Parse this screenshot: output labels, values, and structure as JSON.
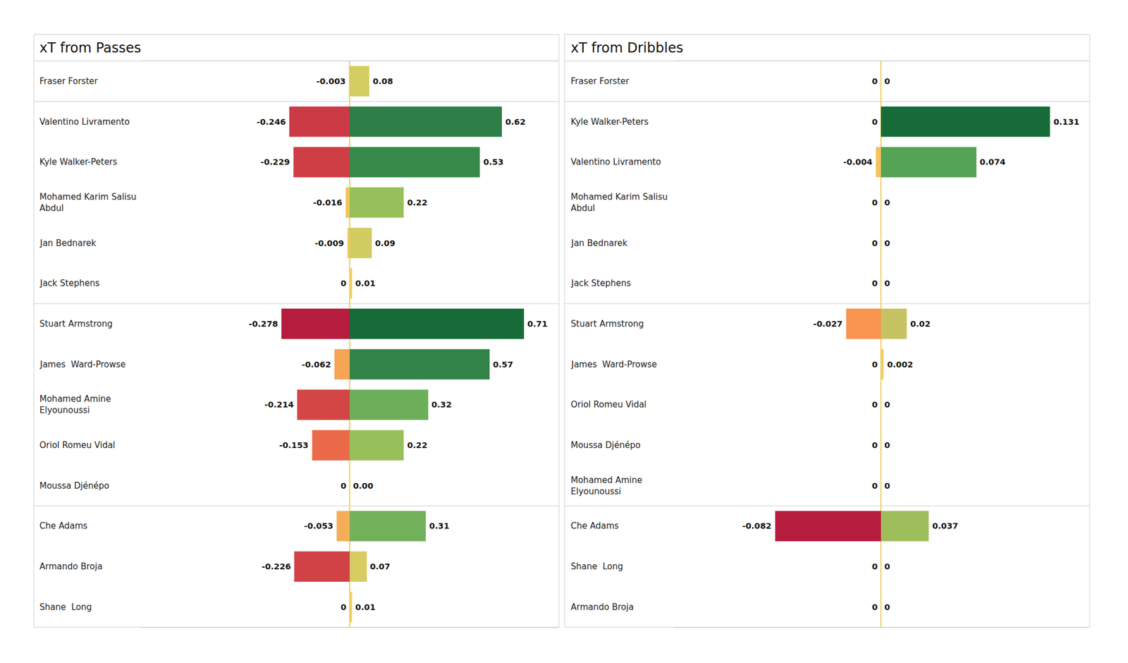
{
  "chart_data": [
    {
      "type": "bar",
      "title": "xT from Passes",
      "orientation": "horizontal",
      "stacked": true,
      "data_labels": true,
      "tick_labels": false,
      "grid": false,
      "xlim": [
        -0.85,
        0.85
      ],
      "xticks": [
        0
      ],
      "categories": [
        "Fraser Forster",
        "Valentino Livramento",
        "Kyle Walker-Peters",
        "Mohamed Karim Salisu\nAbdul",
        "Jan Bednarek",
        "Jack Stephens",
        "Stuart Armstrong",
        "James  Ward-Prowse",
        "Mohamed Amine\nElyounoussi",
        "Oriol Romeu Vidal",
        "Moussa Djénépo",
        "Che Adams",
        "Armando Broja",
        "Shane  Long"
      ],
      "series": [
        {
          "values": [
            -0.003,
            -0.246,
            -0.229,
            -0.016,
            -0.009,
            0,
            -0.278,
            -0.062,
            -0.214,
            -0.153,
            0,
            -0.053,
            -0.226,
            0
          ],
          "colors": [
            "#f2c45f",
            "#cc3a45",
            "#d03e45",
            "#f0c55c",
            "#f0c85e",
            "#f0cf5f",
            "#b51c3e",
            "#f5a553",
            "#d44545",
            "#ea6a4a",
            "#f0cf5f",
            "#f5ad57",
            "#d04245",
            "#f0cf5f"
          ]
        },
        {
          "values": [
            0.08,
            0.62,
            0.53,
            0.22,
            0.09,
            0.01,
            0.71,
            0.57,
            0.32,
            0.22,
            0,
            0.31,
            0.07,
            0.01
          ],
          "value_labels": [
            "0.08",
            "0.62",
            "0.53",
            "0.22",
            "0.09",
            "0.01",
            "0.71",
            "0.57",
            "0.32",
            "0.22",
            "0.00",
            "0.31",
            "0.07",
            "0.01"
          ],
          "colors": [
            "#d4cd62",
            "#2d7f47",
            "#378a4a",
            "#98c05a",
            "#d1cc62",
            "#f0d060",
            "#166b38",
            "#32844a",
            "#6daf59",
            "#98c05a",
            "#f0d060",
            "#72b05a",
            "#d6cc62",
            "#f0d060"
          ]
        }
      ]
    },
    {
      "type": "bar",
      "title": "xT from Dribbles",
      "orientation": "horizontal",
      "stacked": true,
      "data_labels": true,
      "tick_labels": false,
      "grid": false,
      "xlim": [
        -0.16,
        0.16
      ],
      "xticks": [
        0
      ],
      "categories": [
        "Fraser Forster",
        "Kyle Walker-Peters",
        "Valentino Livramento",
        "Mohamed Karim Salisu\nAbdul",
        "Jan Bednarek",
        "Jack Stephens",
        "Stuart Armstrong",
        "James  Ward-Prowse",
        "Oriol Romeu Vidal",
        "Moussa Djénépo",
        "Mohamed Amine\nElyounoussi",
        "Che Adams",
        "Shane  Long",
        "Armando Broja"
      ],
      "series": [
        {
          "values": [
            0,
            0,
            -0.004,
            0,
            0,
            0,
            -0.027,
            0,
            0,
            0,
            0,
            -0.082,
            0,
            0
          ],
          "colors": [
            "#f0cf5f",
            "#f0cf5f",
            "#f2c45f",
            "#f0cf5f",
            "#f0cf5f",
            "#f0cf5f",
            "#f8944f",
            "#f0cf5f",
            "#f0cf5f",
            "#f0cf5f",
            "#f0cf5f",
            "#b51c3e",
            "#f0cf5f",
            "#f0cf5f"
          ]
        },
        {
          "values": [
            0,
            0.131,
            0.074,
            0,
            0,
            0,
            0.02,
            0.002,
            0,
            0,
            0,
            0.037,
            0,
            0
          ],
          "colors": [
            "#f0d060",
            "#166b38",
            "#55a355",
            "#f0d060",
            "#f0d060",
            "#f0d060",
            "#c6c462",
            "#f0cf5f",
            "#f0d060",
            "#f0d060",
            "#f0d060",
            "#9dbe5a",
            "#f0d060",
            "#f0d060"
          ]
        }
      ]
    }
  ]
}
